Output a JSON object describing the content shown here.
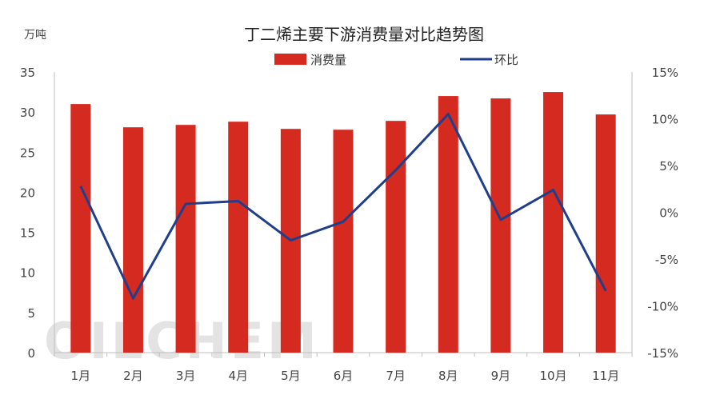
{
  "chart_data": {
    "type": "bar+line",
    "title": "丁二烯主要下游消费量对比趋势图",
    "y_unit_label": "万吨",
    "categories": [
      "1月",
      "2月",
      "3月",
      "4月",
      "5月",
      "6月",
      "7月",
      "8月",
      "9月",
      "10月",
      "11月"
    ],
    "series": [
      {
        "name": "消费量",
        "type": "bar",
        "axis": "left",
        "color": "#d42a1f",
        "values": [
          31.0,
          28.1,
          28.4,
          28.8,
          27.9,
          27.8,
          28.9,
          32.0,
          31.7,
          32.5,
          29.7
        ]
      },
      {
        "name": "环比",
        "type": "line",
        "axis": "right",
        "color": "#1f3e8c",
        "values": [
          2.8,
          -9.2,
          0.9,
          1.2,
          -3.0,
          -1.0,
          4.5,
          10.5,
          -0.8,
          2.4,
          -8.4
        ]
      }
    ],
    "left_axis": {
      "min": 0,
      "max": 35,
      "ticks": [
        "0",
        "5",
        "10",
        "15",
        "20",
        "25",
        "30",
        "35"
      ]
    },
    "right_axis": {
      "min": -15,
      "max": 15,
      "ticks": [
        "-15%",
        "-10%",
        "-5%",
        "0%",
        "5%",
        "10%",
        "15%"
      ]
    },
    "grid": false,
    "legend_position": "top-center",
    "watermark": "OILCHEM"
  }
}
